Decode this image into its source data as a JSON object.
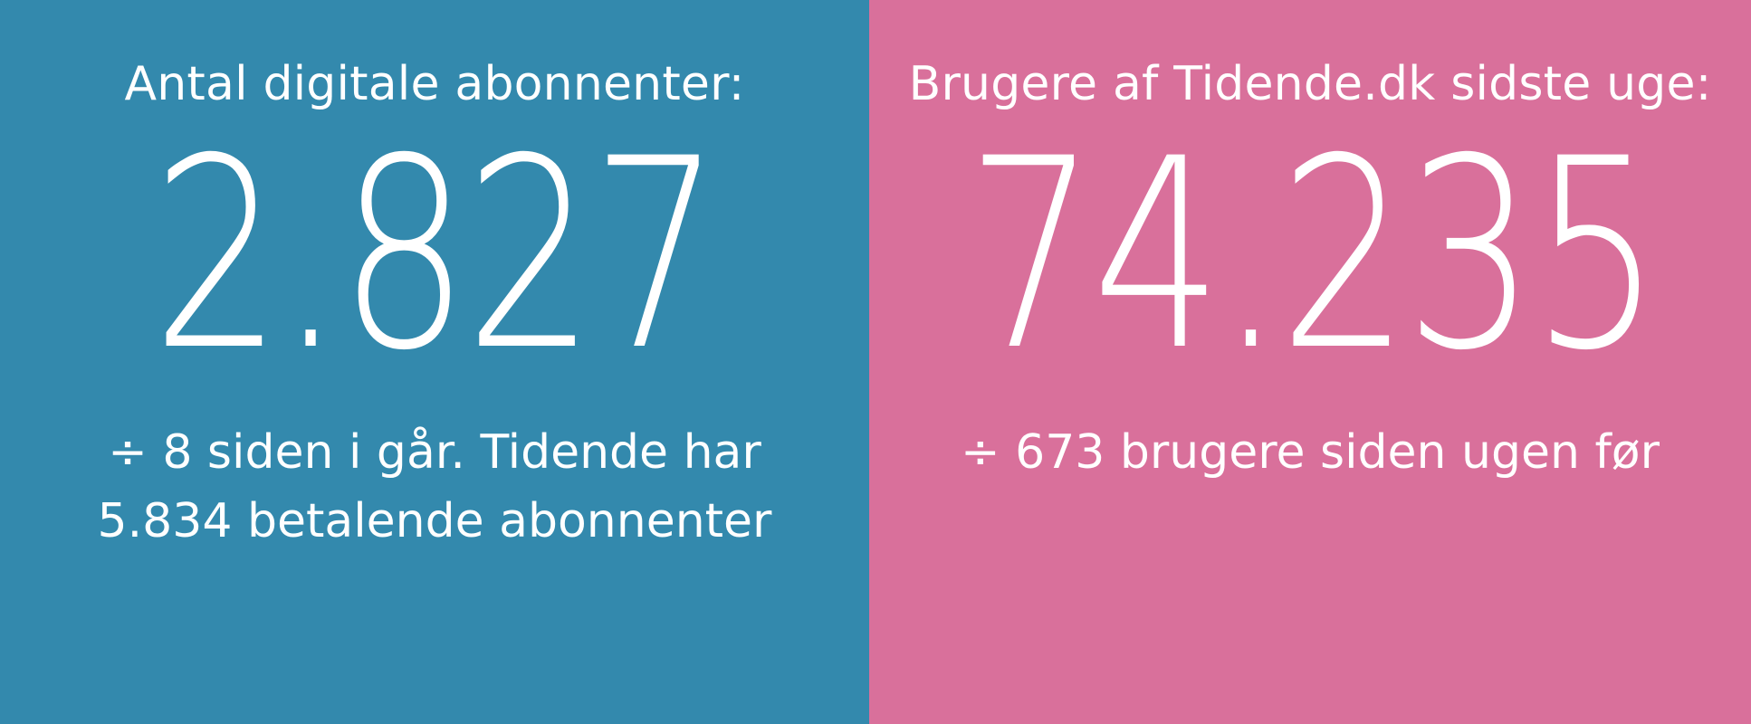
{
  "left_panel": {
    "background": "#3389ad",
    "heading": "Antal digitale abonnenter:",
    "value": "2.827",
    "detail_line_1": "÷ 8 siden i går. Tidende har",
    "detail_line_2": "5.834 betalende abonnenter"
  },
  "right_panel": {
    "background": "#d9709b",
    "heading": "Brugere af Tidende.dk sidste uge:",
    "value": "74.235",
    "detail_line_1": "÷ 673 brugere siden ugen før"
  }
}
